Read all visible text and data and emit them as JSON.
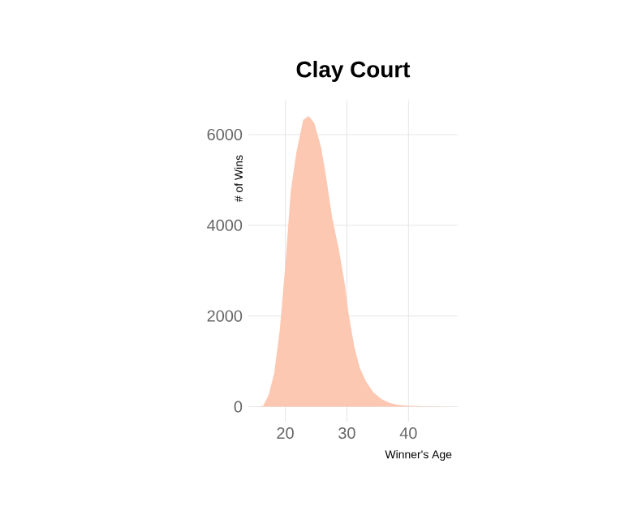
{
  "chart_data": {
    "type": "area",
    "title": "Clay Court",
    "xlabel": "Winner's Age",
    "ylabel": "# of Wins",
    "x": [
      15.5,
      16.4,
      17.3,
      18.2,
      19.1,
      20,
      20.9,
      21.8,
      22.9,
      23.8,
      24.7,
      25.8,
      26.7,
      27.6,
      28.7,
      29.6,
      30.3,
      31.2,
      32.1,
      33.1,
      34.3,
      35.6,
      37,
      38.3,
      40.1,
      42.8,
      47.7
    ],
    "values": [
      0,
      20,
      260,
      740,
      1690,
      3110,
      4770,
      5600,
      6320,
      6410,
      6260,
      5730,
      5010,
      4180,
      3470,
      2760,
      2040,
      1330,
      860,
      560,
      320,
      170,
      80,
      40,
      20,
      10,
      0
    ],
    "color": "#fdc8b2",
    "xlim": [
      14,
      48
    ],
    "ylim": [
      -330,
      6750
    ],
    "xticks": [
      20,
      30,
      40
    ],
    "yticks": [
      0,
      2000,
      4000,
      6000
    ],
    "grid": true
  }
}
